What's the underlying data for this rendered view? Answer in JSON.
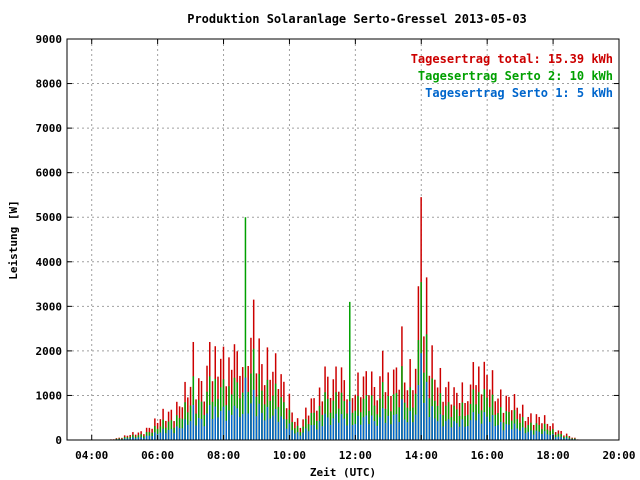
{
  "chart_data": {
    "type": "bar",
    "title": "Produktion Solaranlage Serto-Gressel 2013-05-03",
    "xlabel": "Zeit (UTC)",
    "ylabel": "Leistung [W]",
    "xlim": [
      3.25,
      20.0
    ],
    "ylim": [
      0,
      9000
    ],
    "x_ticks": [
      "04:00",
      "06:00",
      "08:00",
      "10:00",
      "12:00",
      "14:00",
      "16:00",
      "18:00",
      "20:00"
    ],
    "x_tick_values": [
      4,
      6,
      8,
      10,
      12,
      14,
      16,
      18,
      20
    ],
    "y_ticks": [
      "0",
      "1000",
      "2000",
      "3000",
      "4000",
      "5000",
      "6000",
      "7000",
      "8000",
      "9000"
    ],
    "y_tick_values": [
      0,
      1000,
      2000,
      3000,
      4000,
      5000,
      6000,
      7000,
      8000,
      9000
    ],
    "grid": true,
    "stacked": true,
    "legend_position": "top-right",
    "legend": [
      {
        "text": "Tagesertrag total: 15.39 kWh",
        "color": "#cc0000"
      },
      {
        "text": "Tagesertrag Serto 2: 10 kWh",
        "color": "#00a000"
      },
      {
        "text": "Tagesertrag Serto 1: 5 kWh",
        "color": "#0066cc"
      }
    ],
    "colors": {
      "total": "#cc0000",
      "serto2": "#00a000",
      "serto1": "#0066cc"
    },
    "knots": [
      [
        4.5,
        0
      ],
      [
        5.0,
        80
      ],
      [
        5.5,
        180
      ],
      [
        6.0,
        400
      ],
      [
        6.5,
        700
      ],
      [
        7.0,
        1100
      ],
      [
        7.5,
        1450
      ],
      [
        8.0,
        1650
      ],
      [
        8.5,
        1700
      ],
      [
        9.0,
        2100
      ],
      [
        9.5,
        1550
      ],
      [
        10.0,
        900
      ],
      [
        10.3,
        300
      ],
      [
        10.7,
        800
      ],
      [
        11.0,
        1100
      ],
      [
        11.5,
        1300
      ],
      [
        12.0,
        1250
      ],
      [
        12.5,
        1200
      ],
      [
        13.0,
        1250
      ],
      [
        13.5,
        1400
      ],
      [
        14.0,
        1900
      ],
      [
        14.5,
        1500
      ],
      [
        15.0,
        900
      ],
      [
        15.5,
        1100
      ],
      [
        16.0,
        1350
      ],
      [
        16.5,
        950
      ],
      [
        17.0,
        650
      ],
      [
        17.5,
        500
      ],
      [
        18.0,
        300
      ],
      [
        18.5,
        80
      ],
      [
        18.8,
        0
      ]
    ],
    "spikes": [
      [
        6.15,
        700
      ],
      [
        7.05,
        2200
      ],
      [
        7.55,
        2200
      ],
      [
        8.3,
        2150
      ],
      [
        8.7,
        5000
      ],
      [
        8.9,
        3150
      ],
      [
        11.85,
        3100
      ],
      [
        12.85,
        2000
      ],
      [
        13.45,
        2550
      ],
      [
        13.9,
        3450
      ],
      [
        14.0,
        5450
      ],
      [
        14.15,
        3650
      ],
      [
        15.6,
        1750
      ],
      [
        15.75,
        1650
      ],
      [
        11.1,
        1650
      ]
    ],
    "spike_series": {
      "8.7": "serto2",
      "11.85": "serto2"
    },
    "serto2_share": 0.65
  }
}
